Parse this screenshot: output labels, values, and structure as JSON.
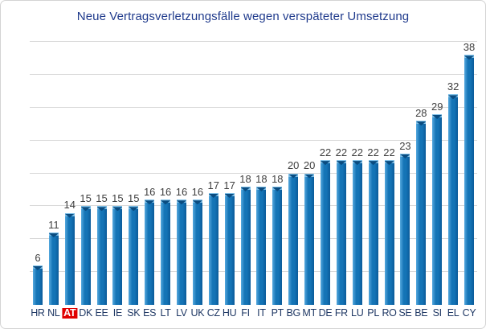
{
  "chart_data": {
    "type": "bar",
    "title": "Neue Vertragsverletzungsfälle wegen verspäteter Umsetzung",
    "categories": [
      "HR",
      "NL",
      "AT",
      "DK",
      "EE",
      "IE",
      "SK",
      "ES",
      "LT",
      "LV",
      "UK",
      "CZ",
      "HU",
      "FI",
      "IT",
      "PT",
      "BG",
      "MT",
      "DE",
      "FR",
      "LU",
      "PL",
      "RO",
      "SE",
      "BE",
      "SI",
      "EL",
      "CY"
    ],
    "values": [
      6,
      11,
      14,
      15,
      15,
      15,
      15,
      16,
      16,
      16,
      16,
      17,
      17,
      18,
      18,
      18,
      20,
      20,
      22,
      22,
      22,
      22,
      22,
      23,
      28,
      29,
      32,
      38
    ],
    "data_labels": true,
    "highlighted_category": "AT",
    "xlabel": "",
    "ylabel": "",
    "ylim": [
      0,
      40
    ],
    "gridline_step": 5,
    "grid_on": true,
    "legend_position": "none",
    "colors": {
      "bar_main": "#1474B6",
      "bar_light": "#56A9DE",
      "bar_dark": "#0B5B9A",
      "bar_cap": "#0A4C80",
      "bar_cap_light": "#7FC0E8",
      "title_text": "#1F3A8C",
      "value_label": "#3F3F3F",
      "category_label": "#1F3864",
      "highlight_bg": "#E00000",
      "highlight_text": "#FFFFFF",
      "gridline": "#D9D9D9"
    }
  }
}
